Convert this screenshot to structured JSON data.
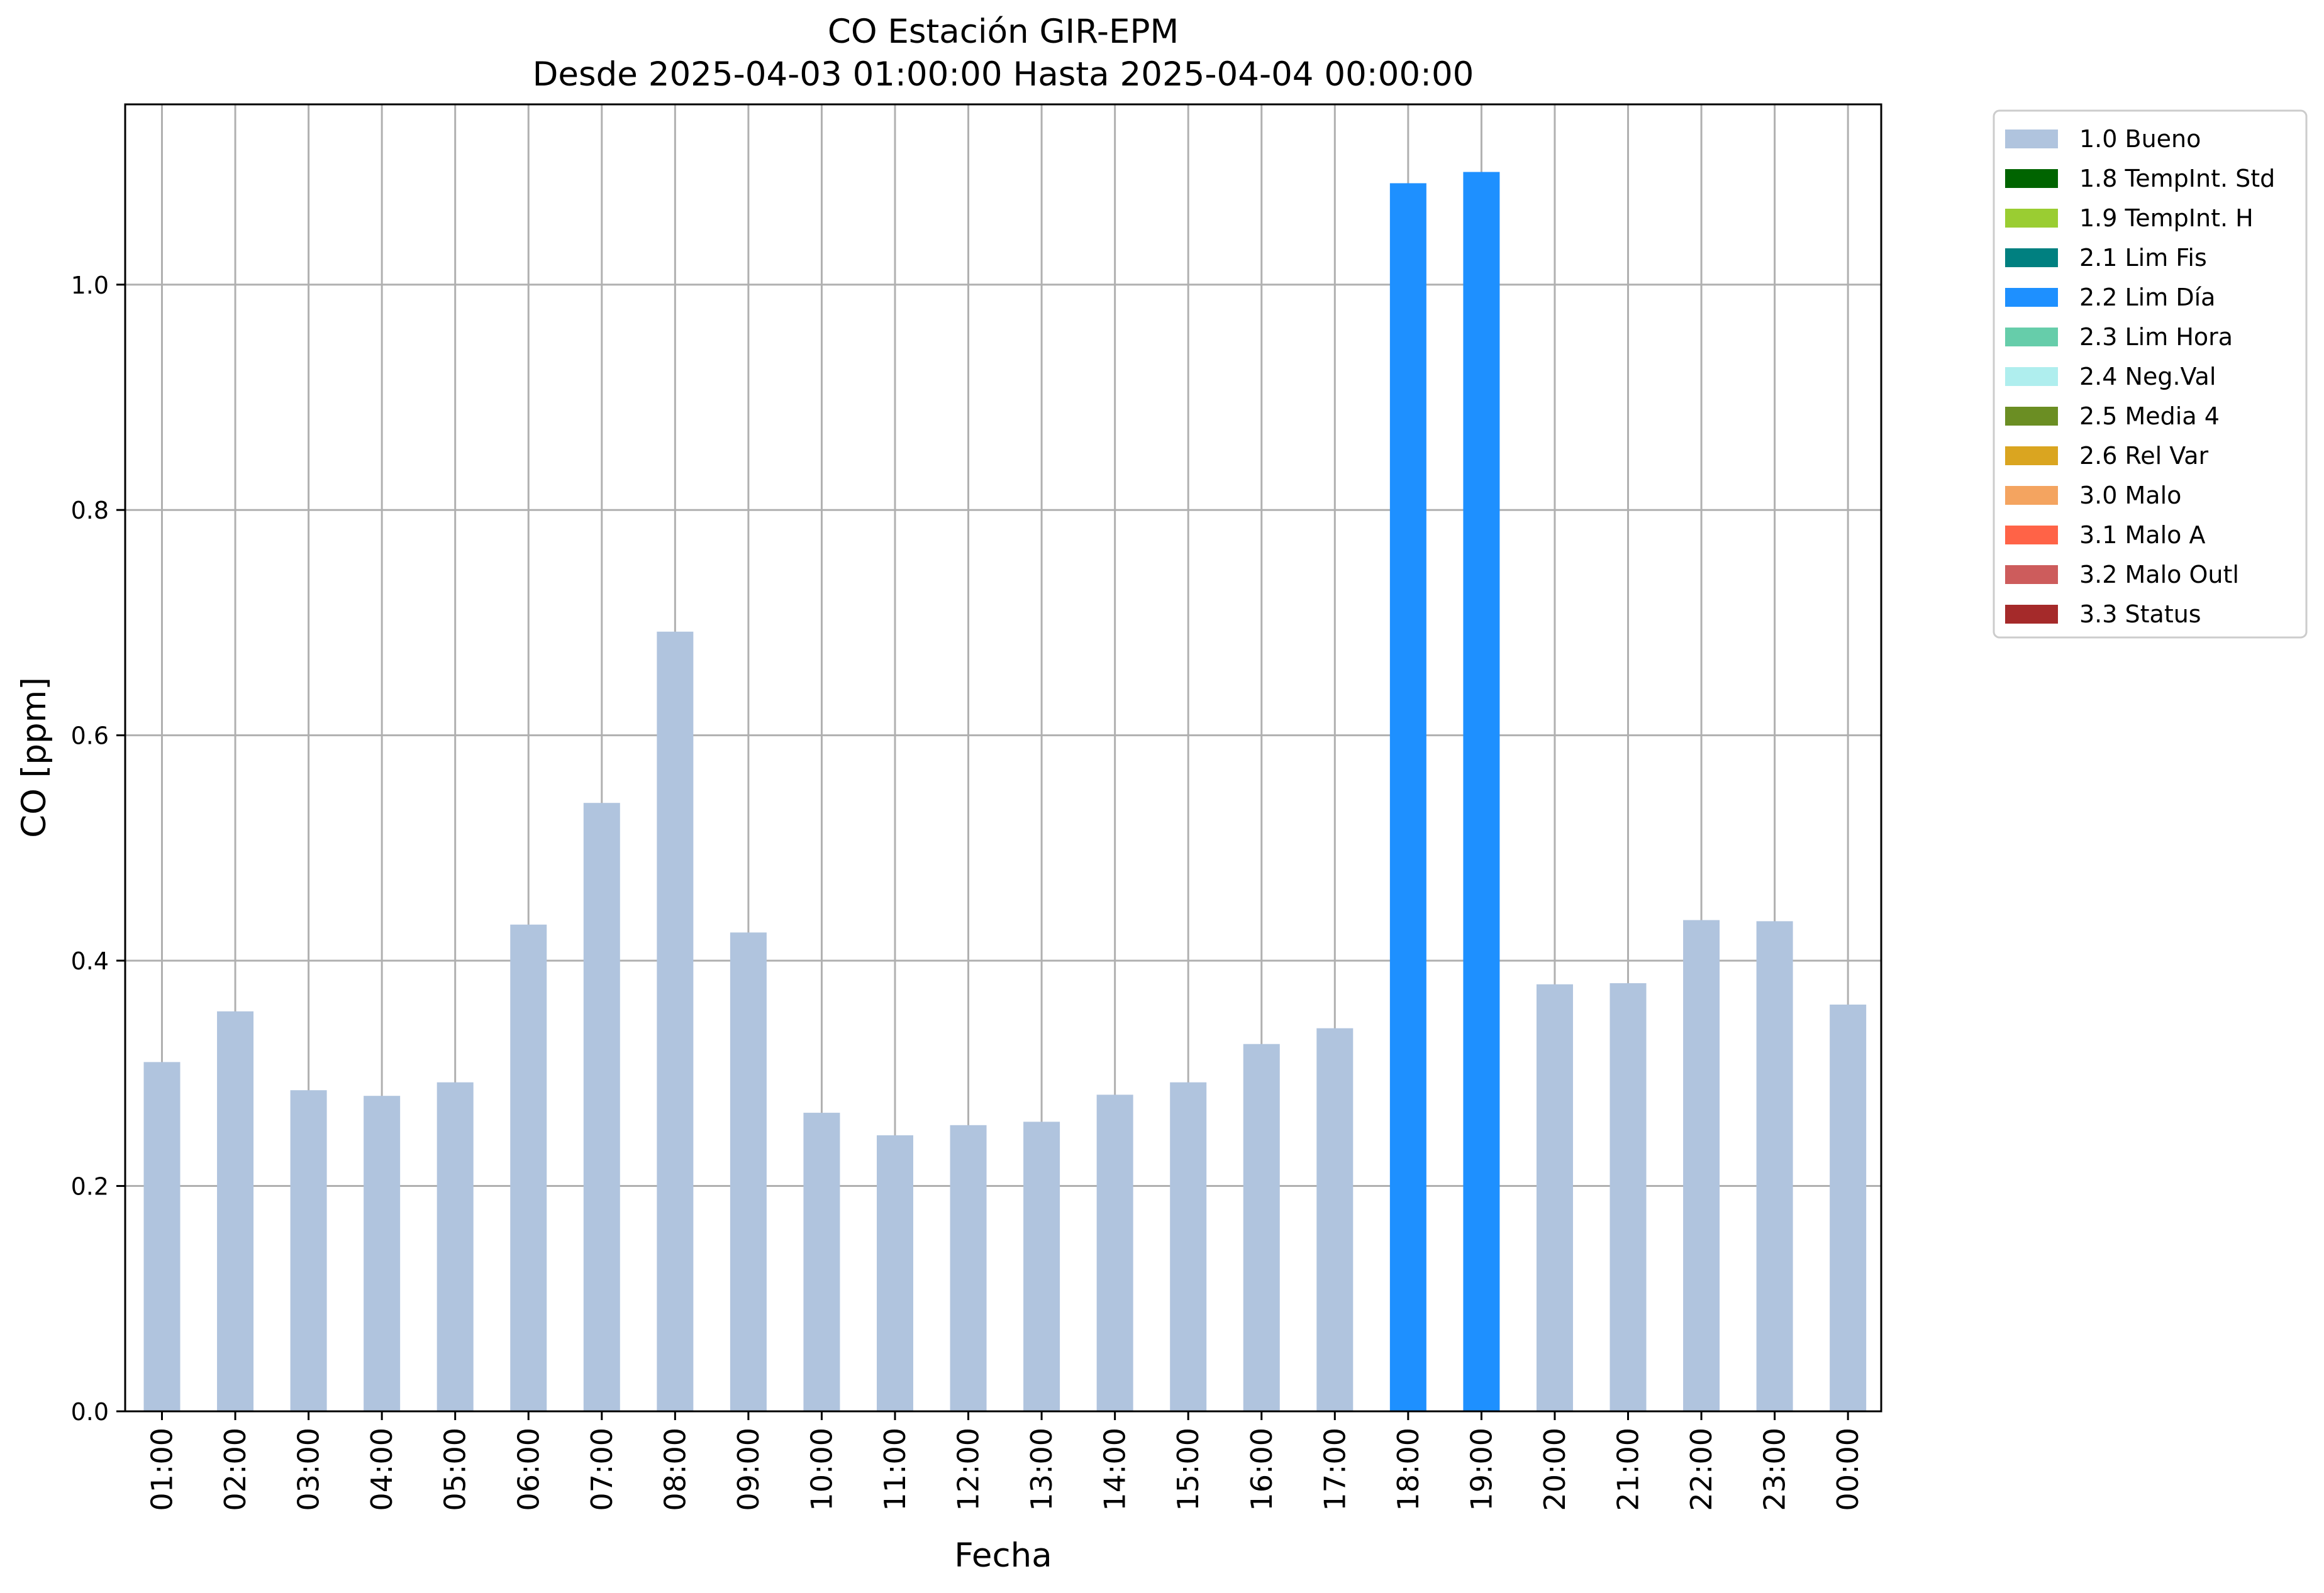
{
  "chart_data": {
    "type": "bar",
    "title": "CO Estación GIR-EPM",
    "subtitle": "Desde 2025-04-03 01:00:00 Hasta 2025-04-04 00:00:00",
    "xlabel": "Fecha",
    "ylabel": "CO [ppm]",
    "ylim": [
      0,
      1.16
    ],
    "yticks": [
      0.0,
      0.2,
      0.4,
      0.6,
      0.8,
      1.0
    ],
    "yticklabels": [
      "0.0",
      "0.2",
      "0.4",
      "0.6",
      "0.8",
      "1.0"
    ],
    "grid": true,
    "legend_position": "outside-top-right",
    "categories": [
      "01:00",
      "02:00",
      "03:00",
      "04:00",
      "05:00",
      "06:00",
      "07:00",
      "08:00",
      "09:00",
      "10:00",
      "11:00",
      "12:00",
      "13:00",
      "14:00",
      "15:00",
      "16:00",
      "17:00",
      "18:00",
      "19:00",
      "20:00",
      "21:00",
      "22:00",
      "23:00",
      "00:00"
    ],
    "values": [
      0.31,
      0.355,
      0.285,
      0.28,
      0.292,
      0.432,
      0.54,
      0.692,
      0.425,
      0.265,
      0.245,
      0.254,
      0.257,
      0.281,
      0.292,
      0.326,
      0.34,
      1.09,
      1.1,
      0.379,
      0.38,
      0.436,
      0.435,
      0.361
    ],
    "flags": [
      "1.0 Bueno",
      "1.0 Bueno",
      "1.0 Bueno",
      "1.0 Bueno",
      "1.0 Bueno",
      "1.0 Bueno",
      "1.0 Bueno",
      "1.0 Bueno",
      "1.0 Bueno",
      "1.0 Bueno",
      "1.0 Bueno",
      "1.0 Bueno",
      "1.0 Bueno",
      "1.0 Bueno",
      "1.0 Bueno",
      "1.0 Bueno",
      "1.0 Bueno",
      "2.2 Lim Día",
      "2.2 Lim Día",
      "1.0 Bueno",
      "1.0 Bueno",
      "1.0 Bueno",
      "1.0 Bueno",
      "1.0 Bueno"
    ],
    "legend": [
      {
        "label": "1.0 Bueno",
        "color": "#b0c4de"
      },
      {
        "label": "1.8 TempInt. Std",
        "color": "#006400"
      },
      {
        "label": "1.9 TempInt. H",
        "color": "#9acd32"
      },
      {
        "label": "2.1 Lim Fis",
        "color": "#008080"
      },
      {
        "label": "2.2 Lim Día",
        "color": "#1e90ff"
      },
      {
        "label": "2.3 Lim Hora",
        "color": "#66cdaa"
      },
      {
        "label": "2.4 Neg.Val",
        "color": "#afeeee"
      },
      {
        "label": "2.5 Media 4",
        "color": "#6b8e23"
      },
      {
        "label": "2.6 Rel Var",
        "color": "#daa520"
      },
      {
        "label": "3.0 Malo",
        "color": "#f4a460"
      },
      {
        "label": "3.1 Malo A",
        "color": "#ff6347"
      },
      {
        "label": "3.2 Malo Outl",
        "color": "#cd5c5c"
      },
      {
        "label": "3.3 Status",
        "color": "#a52a2a"
      }
    ]
  }
}
